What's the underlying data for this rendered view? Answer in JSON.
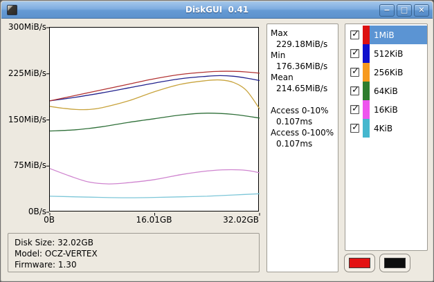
{
  "window": {
    "title": "DiskGUI  0.41",
    "minimize_glyph": "−",
    "maximize_glyph": "□",
    "close_glyph": "✕"
  },
  "chart_data": {
    "type": "line",
    "title": "",
    "xlabel": "",
    "ylabel": "",
    "xlim": [
      0,
      32.02
    ],
    "ylim": [
      0,
      300
    ],
    "grid": false,
    "legend_position": "right-panel",
    "xticks": [
      {
        "v": 0,
        "label": "0B"
      },
      {
        "v": 16.01,
        "label": "16.01GB"
      },
      {
        "v": 32.02,
        "label": "32.02GB"
      }
    ],
    "yticks": [
      {
        "v": 0,
        "label": "0B/s"
      },
      {
        "v": 75,
        "label": "75MiB/s"
      },
      {
        "v": 150,
        "label": "150MiB/s"
      },
      {
        "v": 225,
        "label": "225MiB/s"
      },
      {
        "v": 300,
        "label": "300MiB/s"
      }
    ],
    "series": [
      {
        "name": "1MiB",
        "color": "#b23232",
        "x": [
          0,
          4,
          8,
          12,
          16,
          20,
          24,
          26,
          28,
          30,
          32.02
        ],
        "y": [
          181,
          190,
          199,
          208,
          217,
          224,
          228,
          229,
          229,
          228,
          226
        ]
      },
      {
        "name": "512KiB",
        "color": "#20208c",
        "x": [
          0,
          4,
          8,
          12,
          16,
          20,
          24,
          26,
          28,
          30,
          32.02
        ],
        "y": [
          181,
          187,
          194,
          202,
          210,
          217,
          221,
          222,
          221,
          218,
          214
        ]
      },
      {
        "name": "256KiB",
        "color": "#c8a33c",
        "x": [
          0,
          2,
          4,
          6,
          8,
          12,
          16,
          20,
          24,
          26,
          28,
          30,
          32.02
        ],
        "y": [
          172,
          169,
          167,
          167,
          170,
          181,
          196,
          208,
          214,
          215,
          211,
          198,
          168
        ]
      },
      {
        "name": "64KiB",
        "color": "#2e6f38",
        "x": [
          0,
          4,
          8,
          12,
          16,
          20,
          24,
          28,
          32.02
        ],
        "y": [
          132,
          134,
          139,
          146,
          152,
          158,
          161,
          159,
          153
        ]
      },
      {
        "name": "16KiB",
        "color": "#cf84cf",
        "x": [
          0,
          3,
          6,
          9,
          12,
          16,
          20,
          24,
          27,
          30,
          32.02
        ],
        "y": [
          71,
          59,
          49,
          46,
          48,
          53,
          61,
          67,
          69,
          68,
          64
        ]
      },
      {
        "name": "4KiB",
        "color": "#7cc6d8",
        "x": [
          0,
          4,
          8,
          12,
          16,
          20,
          24,
          28,
          32.02
        ],
        "y": [
          26,
          25,
          24,
          23.5,
          24,
          25,
          26,
          28,
          30
        ]
      }
    ]
  },
  "stats": {
    "items": [
      {
        "label": "Max",
        "value": "229.18MiB/s"
      },
      {
        "label": "Min",
        "value": "176.36MiB/s"
      },
      {
        "label": "Mean",
        "value": "214.65MiB/s"
      },
      {
        "label": "Access 0-10%",
        "value": "0.107ms"
      },
      {
        "label": "Access 0-100%",
        "value": "0.107ms"
      }
    ]
  },
  "legend": {
    "check_glyph": "✓",
    "selected_index": 0,
    "selection_color": "#5b94d3",
    "items": [
      {
        "label": "1MiB",
        "color": "#dd1111",
        "checked": true
      },
      {
        "label": "512KiB",
        "color": "#1010cc",
        "checked": true
      },
      {
        "label": "256KiB",
        "color": "#f79a1e",
        "checked": true
      },
      {
        "label": "64KiB",
        "color": "#2e7d2e",
        "checked": true
      },
      {
        "label": "16KiB",
        "color": "#ee55ee",
        "checked": true
      },
      {
        "label": "4KiB",
        "color": "#45b7ce",
        "checked": true
      }
    ]
  },
  "info": {
    "lines": [
      "Disk Size: 32.02GB",
      "Model: OCZ-VERTEX",
      "Firmware: 1.30"
    ]
  },
  "color_buttons": {
    "foreground": "#e31212",
    "background": "#0d0d0d"
  }
}
